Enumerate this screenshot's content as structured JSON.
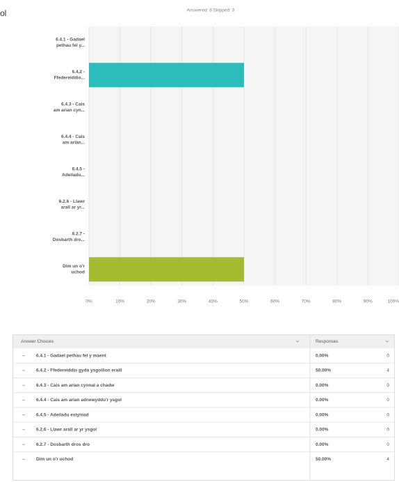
{
  "fragments": {
    "left_cut": "ol",
    "mark": "!"
  },
  "chart_data": {
    "type": "hbar",
    "title": "Answered: 8    Skipped: 3",
    "categories": [
      [
        "6.4.1 - Gadael",
        "pethau fel y..."
      ],
      [
        "6.4.2 -",
        "Ffedereiddio..."
      ],
      [
        "6.4.3 - Cais",
        "am arian cyn..."
      ],
      [
        "6.4.4 - Cais",
        "am arian..."
      ],
      [
        "6.4.5 -",
        "Adeiladu..."
      ],
      [
        "6.2.6 - Llawr",
        "arall ar yr..."
      ],
      [
        "6.2.7 -",
        "Dosbarth dro..."
      ],
      [
        "Dim un o'r",
        "uchod"
      ]
    ],
    "values": [
      0,
      50,
      0,
      0,
      0,
      0,
      0,
      50
    ],
    "bar_colors": {
      "1": "#2dbcbc",
      "7": "#a4bb30"
    },
    "xlim": [
      0,
      100
    ],
    "xticks": [
      {
        "value": 0,
        "label": "0%"
      },
      {
        "value": 10,
        "label": "10%"
      },
      {
        "value": 20,
        "label": "20%"
      },
      {
        "value": 30,
        "label": "30%"
      },
      {
        "value": 40,
        "label": "40%"
      },
      {
        "value": 50,
        "label": "50%"
      },
      {
        "value": 60,
        "label": "60%"
      },
      {
        "value": 70,
        "label": "70%"
      },
      {
        "value": 80,
        "label": "80%"
      },
      {
        "value": 90,
        "label": "90%"
      },
      {
        "value": 100,
        "label": "100%"
      }
    ],
    "grid": true
  },
  "table": {
    "header": [
      "Answer Choices",
      "Responses"
    ],
    "rows": [
      [
        "6.4.1 - Gadael pethau fel y maent",
        "0.00%",
        0
      ],
      [
        "6.4.2 - Ffedereiddio gyda ysgol/ion eraill",
        "50.00%",
        4
      ],
      [
        "6.4.3 - Cais am arian cynnal a chadw",
        "0.00%",
        0
      ],
      [
        "6.4.4 - Cais am arian adnewyddu'r ysgol",
        "0.00%",
        0
      ],
      [
        "6.4.5 - Adeiladu estyniad",
        "0.00%",
        0
      ],
      [
        "6.2.6 - Llawr arall ar yr ysgol",
        "0.00%",
        0
      ],
      [
        "6.2.7 - Dosbarth dros dro",
        "0.00%",
        0
      ],
      [
        "Dim un o'r uchod",
        "50.00%",
        4
      ]
    ]
  }
}
